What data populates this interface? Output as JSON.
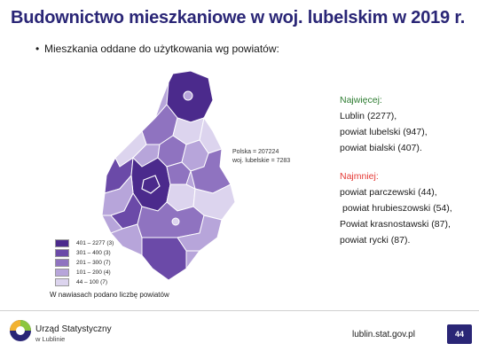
{
  "title": "Budownictwo mieszkaniowe w woj. lubelskim w 2019 r.",
  "bullet": "Mieszkania oddane do użytkowania wg powiatów:",
  "map_note": {
    "line1": "Polska = 207224",
    "line2": "woj. lubelskie = 7283"
  },
  "legend": [
    {
      "label": "401 – 2277 (3)",
      "color": "#4b2a8c"
    },
    {
      "label": "301 – 400 (3)",
      "color": "#6b4aa8"
    },
    {
      "label": "201 – 300 (7)",
      "color": "#8f73c0"
    },
    {
      "label": "101 – 200 (4)",
      "color": "#b7a5da"
    },
    {
      "label": "44 – 100 (7)",
      "color": "#dcd4ee"
    }
  ],
  "footnote": "W nawiasach podano liczbę powiatów",
  "most": {
    "header": "Najwięcej:",
    "items": [
      "Lublin (2277),",
      "powiat lubelski (947),",
      "powiat bialski (407)."
    ]
  },
  "least": {
    "header": "Najmniej:",
    "items": [
      "powiat parczewski (44),",
      "powiat hrubieszowski (54),",
      "Powiat krasnostawski (87),",
      "powiat rycki (87)."
    ]
  },
  "footer": {
    "logo_line1": "Urząd Statystyczny",
    "logo_line2": "w Lublinie",
    "site": "lublin.stat.gov.pl",
    "page": "44"
  },
  "colors": {
    "title": "#2a2676",
    "green_header": "#2e7d32",
    "red_header": "#e53935"
  }
}
